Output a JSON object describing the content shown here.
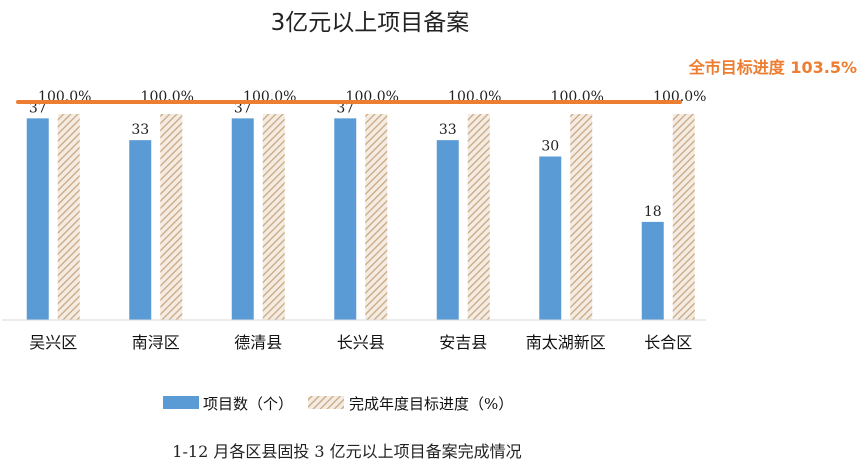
{
  "chart_data": {
    "type": "bar",
    "title": "3亿元以上项目备案",
    "categories": [
      "吴兴区",
      "南浔区",
      "德清县",
      "长兴县",
      "安吉县",
      "南太湖新区",
      "长合区"
    ],
    "series": [
      {
        "name": "项目数（个）",
        "values": [
          37,
          33,
          37,
          37,
          33,
          30,
          18
        ],
        "value_labels": [
          "37",
          "33",
          "37",
          "37",
          "33",
          "30",
          "18"
        ],
        "color": "#5b9bd5",
        "pattern": "solid"
      },
      {
        "name": "完成年度目标进度（%）",
        "values": [
          100.0,
          100.0,
          100.0,
          100.0,
          100.0,
          100.0,
          100.0
        ],
        "value_labels": [
          "100.0%",
          "100.0%",
          "100.0%",
          "100.0%",
          "100.0%",
          "100.0%",
          "100.0%"
        ],
        "color": "#c9a882",
        "pattern": "diagonal-hatch"
      }
    ],
    "reference_line": {
      "label": "全市目标进度 103.5%",
      "value": 103.5,
      "color": "#ed7d31"
    },
    "ylim": [
      0,
      100
    ],
    "grid": false,
    "legend_position": "bottom"
  },
  "caption": "1-12 月各区县固投 3 亿元以上项目备案完成情况"
}
